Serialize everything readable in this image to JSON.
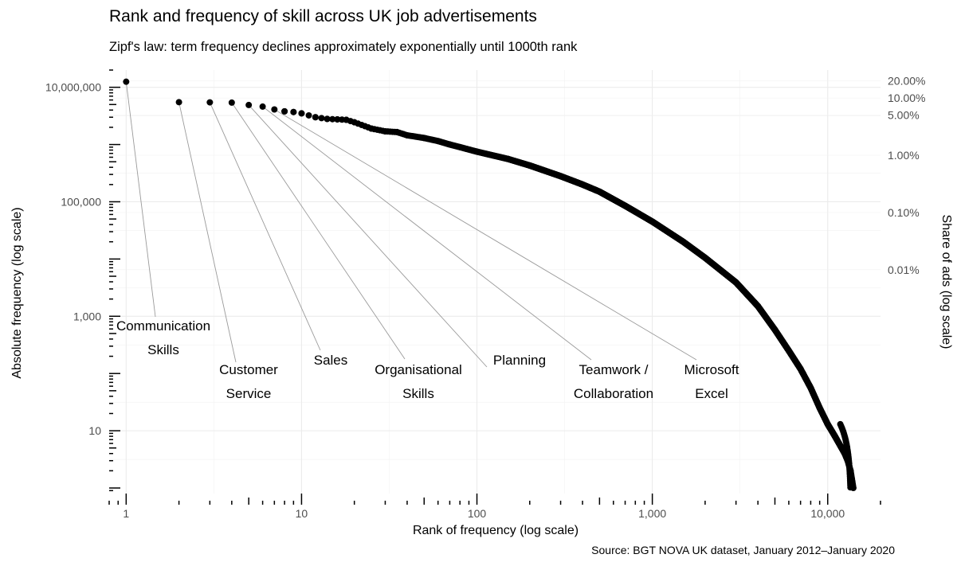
{
  "chart_data": {
    "type": "scatter",
    "title": "Rank and frequency of skill across UK job advertisements",
    "subtitle": "Zipf's law: term frequency declines approximately exponentially until 1000th rank",
    "caption": "Source: BGT NOVA UK dataset, January 2012–January 2020",
    "xlabel": "Rank of frequency (log scale)",
    "ylabel": "Absolute frequency (log scale)",
    "y2label": "Share of ads (log scale)",
    "x_scale": "log",
    "y_scale": "log",
    "grid": true,
    "xlim": [
      0.8,
      20000
    ],
    "ylim": [
      0.8,
      20000000
    ],
    "x_ticks": [
      {
        "value": 1,
        "label": "1"
      },
      {
        "value": 10,
        "label": "10"
      },
      {
        "value": 100,
        "label": "100"
      },
      {
        "value": 1000,
        "label": "1,000"
      },
      {
        "value": 10000,
        "label": "10,000"
      }
    ],
    "y_ticks": [
      {
        "value": 10,
        "label": "10"
      },
      {
        "value": 1000,
        "label": "1,000"
      },
      {
        "value": 100000,
        "label": "100,000"
      },
      {
        "value": 10000000,
        "label": "10,000,000"
      }
    ],
    "y2_ticks": [
      {
        "value": 13000000,
        "label": "20.00%"
      },
      {
        "value": 6500000,
        "label": "10.00%"
      },
      {
        "value": 3250000,
        "label": "5.00%"
      },
      {
        "value": 650000,
        "label": "1.00%"
      },
      {
        "value": 65000,
        "label": "0.10%"
      },
      {
        "value": 6500,
        "label": "0.01%"
      }
    ],
    "labeled_points": [
      {
        "rank": 1,
        "frequency": 12500000,
        "label": "Communication Skills",
        "label_lines": [
          "Communication",
          "Skills"
        ]
      },
      {
        "rank": 2,
        "frequency": 5500000,
        "label": "Customer Service",
        "label_lines": [
          "Customer",
          "Service"
        ]
      },
      {
        "rank": 3,
        "frequency": 5450000,
        "label": "Sales",
        "label_lines": [
          "Sales"
        ]
      },
      {
        "rank": 4,
        "frequency": 5400000,
        "label": "Organisational Skills",
        "label_lines": [
          "Organisational",
          "Skills"
        ]
      },
      {
        "rank": 5,
        "frequency": 4900000,
        "label": "Planning",
        "label_lines": [
          "Planning"
        ]
      },
      {
        "rank": 6,
        "frequency": 4600000,
        "label": "Teamwork / Collaboration",
        "label_lines": [
          "Teamwork /",
          "Collaboration"
        ]
      },
      {
        "rank": 7,
        "frequency": 4100000,
        "label": "Microsoft Excel",
        "label_lines": [
          "Microsoft",
          "Excel"
        ]
      }
    ],
    "series": [
      {
        "points": [
          [
            1,
            12500000
          ],
          [
            2,
            5500000
          ],
          [
            3,
            5450000
          ],
          [
            4,
            5400000
          ],
          [
            5,
            4900000
          ],
          [
            6,
            4600000
          ],
          [
            7,
            4100000
          ],
          [
            8,
            3800000
          ],
          [
            9,
            3700000
          ],
          [
            10,
            3500000
          ],
          [
            12,
            3000000
          ],
          [
            14,
            2800000
          ],
          [
            16,
            2750000
          ],
          [
            18,
            2700000
          ],
          [
            20,
            2450000
          ],
          [
            25,
            1900000
          ],
          [
            30,
            1700000
          ],
          [
            35,
            1650000
          ],
          [
            40,
            1450000
          ],
          [
            50,
            1300000
          ],
          [
            60,
            1150000
          ],
          [
            70,
            1000000
          ],
          [
            80,
            900000
          ],
          [
            100,
            750000
          ],
          [
            150,
            560000
          ],
          [
            200,
            430000
          ],
          [
            300,
            280000
          ],
          [
            400,
            200000
          ],
          [
            500,
            150000
          ],
          [
            700,
            85000
          ],
          [
            1000,
            45000
          ],
          [
            1500,
            20000
          ],
          [
            2000,
            10500
          ],
          [
            3000,
            3900
          ],
          [
            4000,
            1500
          ],
          [
            5000,
            580
          ],
          [
            6000,
            250
          ],
          [
            7000,
            120
          ],
          [
            8000,
            56
          ],
          [
            9000,
            25
          ],
          [
            10000,
            13
          ],
          [
            11000,
            8
          ],
          [
            12000,
            5
          ],
          [
            12500,
            4
          ],
          [
            13000,
            3
          ],
          [
            13500,
            2
          ],
          [
            14000,
            1
          ]
        ]
      }
    ]
  }
}
